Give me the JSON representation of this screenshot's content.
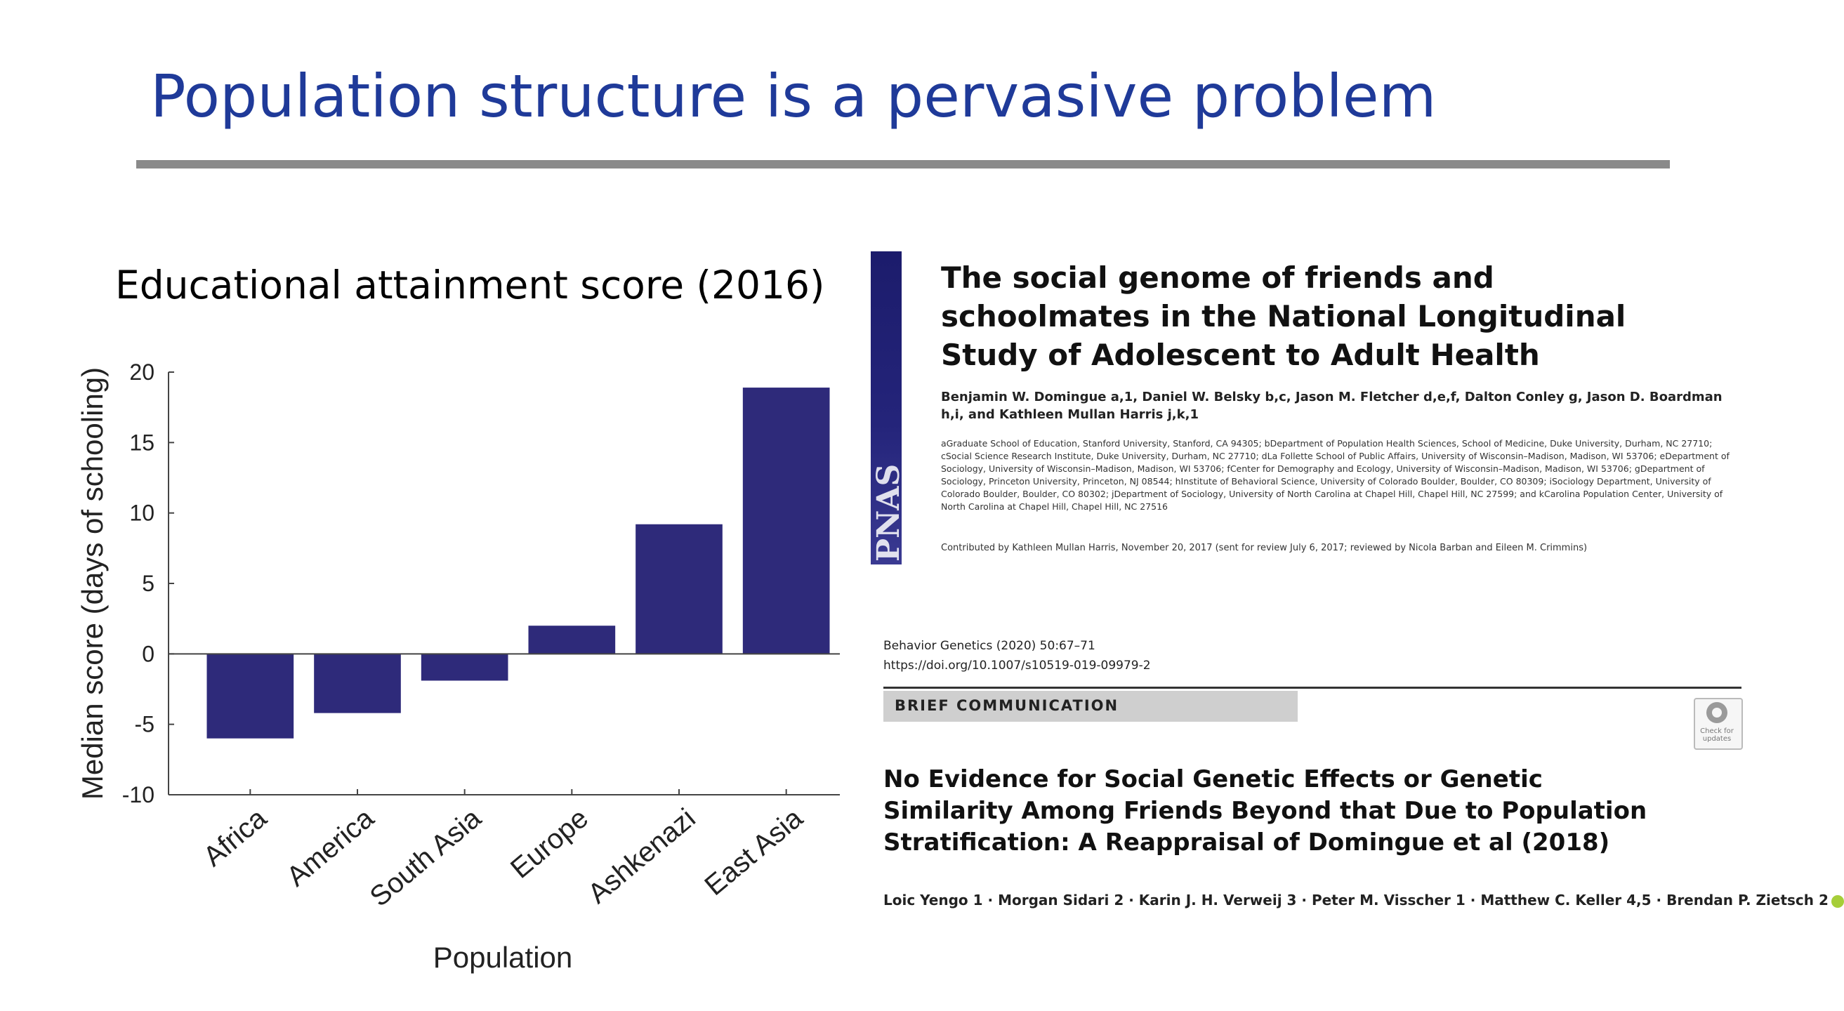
{
  "slide": {
    "title": "Population structure is a pervasive problem"
  },
  "chart_data": {
    "type": "bar",
    "title": "Educational attainment score (2016)",
    "xlabel": "Population",
    "ylabel": "Median score (days of schooling)",
    "categories": [
      "Africa",
      "America",
      "South Asia",
      "Europe",
      "Ashkenazi",
      "East Asia"
    ],
    "values": [
      -6,
      -4.2,
      -1.9,
      2,
      9.2,
      18.9
    ],
    "ylim": [
      -10,
      20
    ],
    "yticks": [
      "-10",
      "-5",
      "0",
      "5",
      "10",
      "15",
      "20"
    ],
    "bar_color": "#2e2a7a",
    "grid": false
  },
  "paper1": {
    "journal_logo": "PNAS",
    "title": "The social genome of friends and schoolmates in the National Longitudinal Study of Adolescent to Adult Health",
    "authors": "Benjamin W. Domingue a,1, Daniel W. Belsky b,c, Jason M. Fletcher d,e,f, Dalton Conley g, Jason D. Boardman h,i, and Kathleen Mullan Harris j,k,1",
    "affiliations": "aGraduate School of Education, Stanford University, Stanford, CA 94305; bDepartment of Population Health Sciences, School of Medicine, Duke University, Durham, NC 27710; cSocial Science Research Institute, Duke University, Durham, NC 27710; dLa Follette School of Public Affairs, University of Wisconsin–Madison, Madison, WI 53706; eDepartment of Sociology, University of Wisconsin–Madison, Madison, WI 53706; fCenter for Demography and Ecology, University of Wisconsin–Madison, Madison, WI 53706; gDepartment of Sociology, Princeton University, Princeton, NJ 08544; hInstitute of Behavioral Science, University of Colorado Boulder, Boulder, CO 80309; iSociology Department, University of Colorado Boulder, Boulder, CO 80302; jDepartment of Sociology, University of North Carolina at Chapel Hill, Chapel Hill, NC 27599; and kCarolina Population Center, University of North Carolina at Chapel Hill, Chapel Hill, NC 27516",
    "contributed": "Contributed by Kathleen Mullan Harris, November 20, 2017 (sent for review July 6, 2017; reviewed by Nicola Barban and Eileen M. Crimmins)"
  },
  "paper2": {
    "journal": "Behavior Genetics (2020) 50:67–71",
    "doi": "https://doi.org/10.1007/s10519-019-09979-2",
    "banner": "BRIEF COMMUNICATION",
    "check_updates": "Check for updates",
    "title": "No Evidence for Social Genetic Effects or Genetic Similarity Among Friends Beyond that Due to Population Stratification: A Reappraisal of Domingue et al (2018)",
    "authors": "Loic Yengo 1 · Morgan Sidari 2 · Karin J. H. Verweij 3 · Peter M. Visscher 1 · Matthew C. Keller 4,5 · Brendan P. Zietsch 2"
  }
}
